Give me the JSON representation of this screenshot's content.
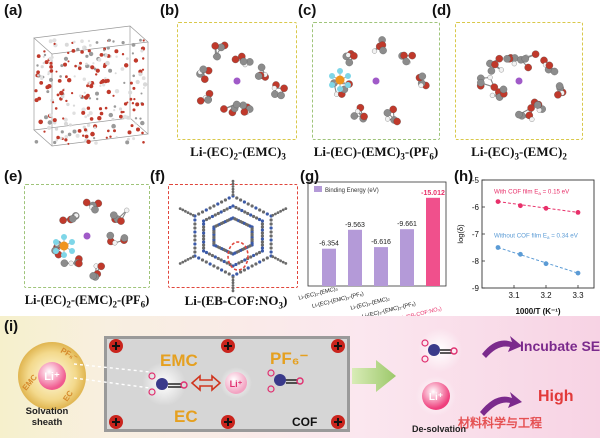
{
  "panels": {
    "a": {
      "label": "(a)"
    },
    "b": {
      "label": "(b)",
      "formula_main": "Li-(EC)",
      "formula_sub1": "2",
      "formula_mid": "-(EMC)",
      "formula_sub2": "3"
    },
    "c": {
      "label": "(c)",
      "formula_main": "Li-(EC)-(EMC)",
      "formula_sub1": "3",
      "formula_mid": "-(PF",
      "formula_sub2": "6",
      "formula_end": ")"
    },
    "d": {
      "label": "(d)",
      "formula_main": "Li-(EC)",
      "formula_sub1": "3",
      "formula_mid": "-(EMC)",
      "formula_sub2": "2"
    },
    "e": {
      "label": "(e)",
      "formula_main": "Li-(EC)",
      "formula_sub1": "2",
      "formula_mid": "-(EMC)",
      "formula_sub2": "2",
      "formula_mid2": "-(PF",
      "formula_sub3": "6",
      "formula_end": ")"
    },
    "f": {
      "label": "(f)",
      "formula": "Li-(EB-COF:NO",
      "formula_sub": "3",
      "formula_end": ")"
    },
    "g": {
      "label": "(g)"
    },
    "h": {
      "label": "(h)"
    },
    "i": {
      "label": "(i)"
    }
  },
  "chart_data": [
    {
      "type": "bar",
      "legend": "Binding Energy (eV)",
      "categories": [
        "Li-(EC)2-(EMC)3",
        "Li-(EC)-(EMC)3-(PF6)",
        "Li-(EC)3-(EMC)2",
        "Li-(EC)2-(EMC)2-(PF6)",
        "Li-(EB-COF:NO3)"
      ],
      "values": [
        -6.354,
        -9.563,
        -6.616,
        -9.661,
        -15.012
      ],
      "value_labels": [
        "-6.354",
        "-9.563",
        "-6.616",
        "-9.661",
        "-15.012"
      ],
      "tick_labels": [
        "Li-(EC)₂-(EMC)₃",
        "Li-(EC)-(EMC)₃-(PF₆)",
        "Li-(EC)₃-(EMC)₂",
        "Li-(EC)₂-(EMC)₂-(PF₆)",
        "Li-(EB-COF:NO₃)"
      ],
      "colors": {
        "bar": "#b49ad8",
        "highlight": "#f0508c",
        "highlight_label": "#e8306a"
      }
    },
    {
      "type": "scatter",
      "xlabel": "1000/T (K⁻¹)",
      "ylabel": "log(δ)",
      "xlim": [
        3.0,
        3.35
      ],
      "ylim": [
        -9,
        -5
      ],
      "xticks": [
        "3.1",
        "3.2",
        "3.3"
      ],
      "xtick_values": [
        3.1,
        3.2,
        3.3
      ],
      "yticks": [
        "-5",
        "-6",
        "-7",
        "-8",
        "-9"
      ],
      "ytick_values": [
        -5,
        -6,
        -7,
        -8,
        -9
      ],
      "series": [
        {
          "name": "With COF film",
          "annotation": "With COF film  E",
          "annotation_sub": "a",
          "annotation_value": " = 0.15 eV",
          "x": [
            3.05,
            3.12,
            3.2,
            3.3
          ],
          "y": [
            -5.8,
            -5.95,
            -6.05,
            -6.2
          ],
          "color": "#e8306a"
        },
        {
          "name": "Without COF film",
          "annotation": "Without COF film  E",
          "annotation_sub": "a",
          "annotation_value": " = 0.34 eV",
          "x": [
            3.05,
            3.12,
            3.2,
            3.3
          ],
          "y": [
            -7.5,
            -7.75,
            -8.1,
            -8.45
          ],
          "color": "#5b9bd5"
        }
      ]
    }
  ],
  "scheme": {
    "li_plus": "Li⁺",
    "pf6_label": "PF₆⁻",
    "ec_small": "EC",
    "emc_small": "EMC",
    "solvation_sheath": "Solvation\nsheath",
    "emc_big": "EMC",
    "pf6_big": "PF₆⁻",
    "ec_big": "EC",
    "cof": "COF",
    "de_solvation": "De-solvation",
    "incubate": "Incubate SEI",
    "high": "High",
    "watermark": "材料科学与工程"
  }
}
